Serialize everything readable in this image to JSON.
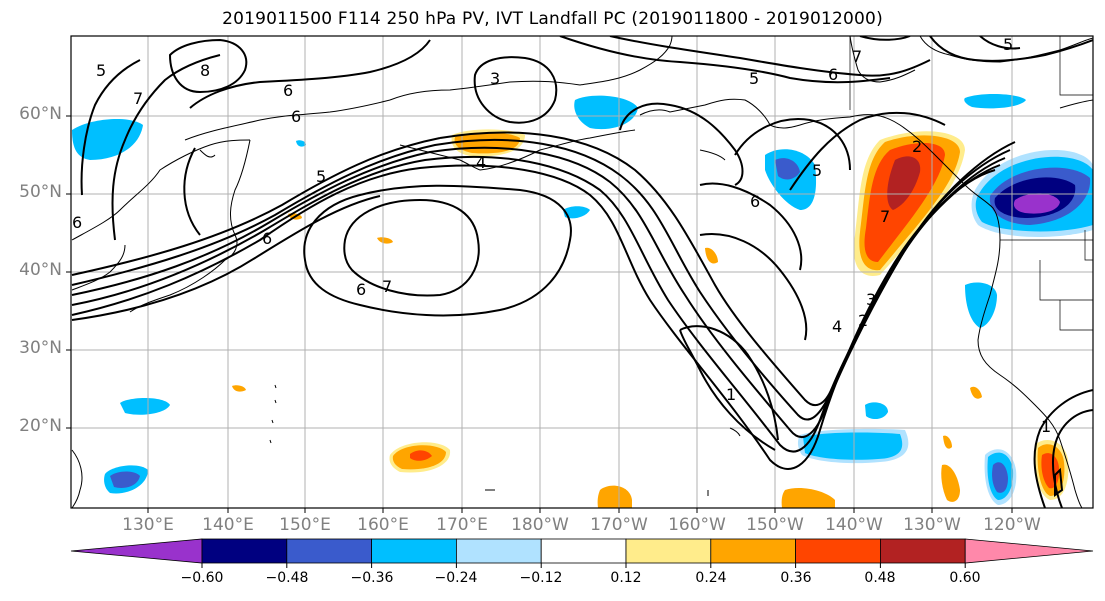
{
  "title": "2019011500 F114 250 hPa PV, IVT Landfall PC (2019011800 - 2019012000)",
  "lat_labels": [
    "60°N",
    "50°N",
    "40°N",
    "30°N",
    "20°N"
  ],
  "lon_labels": [
    "130°E",
    "140°E",
    "150°E",
    "160°E",
    "170°E",
    "180°W",
    "170°W",
    "160°W",
    "150°W",
    "140°W",
    "130°W",
    "120°W"
  ],
  "contour_labels": [
    "8",
    "7",
    "6",
    "6",
    "5",
    "3",
    "4",
    "5",
    "6",
    "7",
    "5",
    "6",
    "6",
    "5",
    "7",
    "6",
    "7",
    "4",
    "3",
    "2",
    "1",
    "1",
    "2",
    "5",
    "6"
  ],
  "colorbar": {
    "tick_labels": [
      "−0.60",
      "−0.48",
      "−0.36",
      "−0.24",
      "−0.12",
      "0.12",
      "0.24",
      "0.36",
      "0.48",
      "0.60"
    ],
    "colors": [
      "#9932cc",
      "#000080",
      "#3a5bcc",
      "#00bfff",
      "#b0e2ff",
      "#ffffff",
      "#ffec8b",
      "#ffa500",
      "#ff4500",
      "#b22222",
      "#ff88aa"
    ]
  }
}
